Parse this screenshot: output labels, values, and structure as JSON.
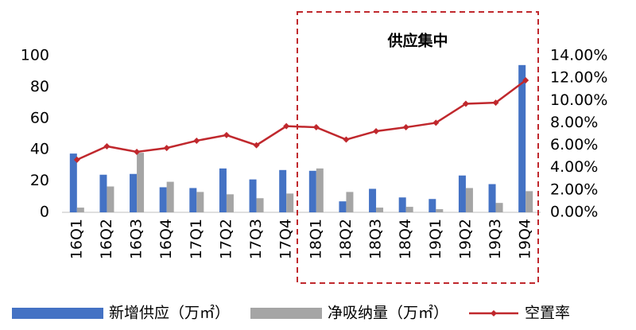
{
  "chart_data": {
    "type": "bar-line",
    "categories": [
      "16Q1",
      "16Q2",
      "16Q3",
      "16Q4",
      "17Q1",
      "17Q2",
      "17Q3",
      "17Q4",
      "18Q1",
      "18Q2",
      "18Q3",
      "18Q4",
      "19Q1",
      "19Q2",
      "19Q3",
      "19Q4"
    ],
    "series": [
      {
        "name": "新增供应（万㎡）",
        "type": "bar",
        "color": "#4472c4",
        "values": [
          37.5,
          24,
          24.5,
          16,
          15.5,
          28,
          21,
          27,
          26.5,
          7,
          15,
          9.5,
          8.5,
          23.5,
          18,
          94
        ]
      },
      {
        "name": "净吸纳量（万㎡）",
        "type": "bar",
        "color": "#a5a5a5",
        "values": [
          3,
          16.5,
          38,
          19.5,
          13,
          11.5,
          9,
          12,
          28,
          13,
          3,
          3.5,
          2,
          15.5,
          6,
          13.5
        ]
      },
      {
        "name": "空置率",
        "type": "line",
        "axis": "y2",
        "color": "#c0282d",
        "values": [
          4.7,
          5.9,
          5.4,
          5.75,
          6.4,
          6.9,
          6.0,
          7.7,
          7.6,
          6.5,
          7.25,
          7.6,
          8.0,
          9.7,
          9.8,
          11.8
        ]
      }
    ],
    "ylim": [
      0,
      100
    ],
    "yticks": [
      0,
      20,
      40,
      60,
      80,
      100
    ],
    "y2lim": [
      0,
      14
    ],
    "y2ticks": [
      {
        "value": 0,
        "label": "0.00%"
      },
      {
        "value": 2,
        "label": "2.00%"
      },
      {
        "value": 4,
        "label": "4.00%"
      },
      {
        "value": 6,
        "label": "6.00%"
      },
      {
        "value": 8,
        "label": "8.00%"
      },
      {
        "value": 10,
        "label": "10.00%"
      },
      {
        "value": 12,
        "label": "12.00%"
      },
      {
        "value": 14,
        "label": "14.00%"
      }
    ],
    "annotation": "供应集中",
    "grid": false,
    "legend": "bottom"
  }
}
